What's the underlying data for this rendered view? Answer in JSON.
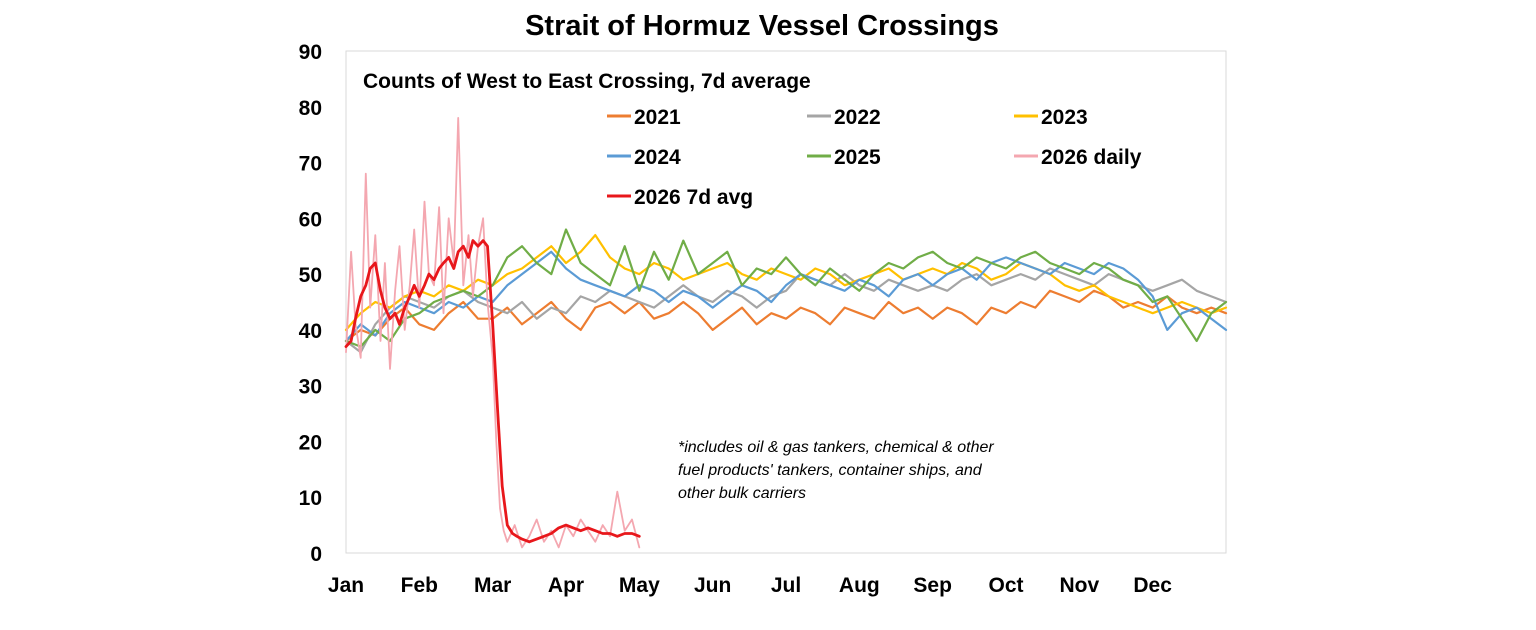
{
  "chart_data": {
    "type": "line",
    "title": "Strait of Hormuz Vessel Crossings",
    "subtitle": "Counts of West to East Crossing, 7d average",
    "footnote": [
      "*includes oil & gas tankers, chemical & other",
      "fuel products' tankers, container ships, and",
      "other bulk carriers"
    ],
    "ylim": [
      0,
      90
    ],
    "yticks": [
      0,
      10,
      20,
      30,
      40,
      50,
      60,
      70,
      80,
      90
    ],
    "x_unit": "month",
    "xlim": [
      0,
      12
    ],
    "xticks": [
      "Jan",
      "Feb",
      "Mar",
      "Apr",
      "May",
      "Jun",
      "Jul",
      "Aug",
      "Sep",
      "Oct",
      "Nov",
      "Dec"
    ],
    "legend_position": "top-right",
    "grid": false,
    "series": [
      {
        "name": "2021",
        "color": "#ED7D31",
        "width": 2.2,
        "x": [
          0,
          0.2,
          0.4,
          0.6,
          0.8,
          1,
          1.2,
          1.4,
          1.6,
          1.8,
          2,
          2.2,
          2.4,
          2.6,
          2.8,
          3,
          3.2,
          3.4,
          3.6,
          3.8,
          4,
          4.2,
          4.4,
          4.6,
          4.8,
          5,
          5.2,
          5.4,
          5.6,
          5.8,
          6,
          6.2,
          6.4,
          6.6,
          6.8,
          7,
          7.2,
          7.4,
          7.6,
          7.8,
          8,
          8.2,
          8.4,
          8.6,
          8.8,
          9,
          9.2,
          9.4,
          9.6,
          9.8,
          10,
          10.2,
          10.4,
          10.6,
          10.8,
          11,
          11.2,
          11.4,
          11.6,
          11.8,
          12
        ],
        "y": [
          38,
          40,
          39,
          42,
          44,
          41,
          40,
          43,
          45,
          42,
          42,
          44,
          41,
          43,
          45,
          42,
          40,
          44,
          45,
          43,
          45,
          42,
          43,
          45,
          43,
          40,
          42,
          44,
          41,
          43,
          42,
          44,
          43,
          41,
          44,
          43,
          42,
          45,
          43,
          44,
          42,
          44,
          43,
          41,
          44,
          43,
          45,
          44,
          47,
          46,
          45,
          47,
          46,
          44,
          45,
          44,
          46,
          44,
          43,
          44,
          43
        ]
      },
      {
        "name": "2022",
        "color": "#A5A5A5",
        "width": 2.2,
        "x": [
          0,
          0.2,
          0.4,
          0.6,
          0.8,
          1,
          1.2,
          1.4,
          1.6,
          1.8,
          2,
          2.2,
          2.4,
          2.6,
          2.8,
          3,
          3.2,
          3.4,
          3.6,
          3.8,
          4,
          4.2,
          4.4,
          4.6,
          4.8,
          5,
          5.2,
          5.4,
          5.6,
          5.8,
          6,
          6.2,
          6.4,
          6.6,
          6.8,
          7,
          7.2,
          7.4,
          7.6,
          7.8,
          8,
          8.2,
          8.4,
          8.6,
          8.8,
          9,
          9.2,
          9.4,
          9.6,
          9.8,
          10,
          10.2,
          10.4,
          10.6,
          10.8,
          11,
          11.2,
          11.4,
          11.6,
          11.8,
          12
        ],
        "y": [
          38,
          36,
          41,
          44,
          46,
          45,
          44,
          46,
          47,
          45,
          44,
          43,
          45,
          42,
          44,
          43,
          46,
          45,
          47,
          46,
          45,
          44,
          46,
          48,
          46,
          45,
          47,
          46,
          44,
          46,
          47,
          50,
          49,
          48,
          50,
          48,
          47,
          49,
          48,
          47,
          48,
          47,
          49,
          50,
          48,
          49,
          50,
          49,
          51,
          50,
          49,
          48,
          50,
          49,
          48,
          47,
          48,
          49,
          47,
          46,
          45
        ]
      },
      {
        "name": "2023",
        "color": "#FFC000",
        "width": 2.2,
        "x": [
          0,
          0.2,
          0.4,
          0.6,
          0.8,
          1,
          1.2,
          1.4,
          1.6,
          1.8,
          2,
          2.2,
          2.4,
          2.6,
          2.8,
          3,
          3.2,
          3.4,
          3.6,
          3.8,
          4,
          4.2,
          4.4,
          4.6,
          4.8,
          5,
          5.2,
          5.4,
          5.6,
          5.8,
          6,
          6.2,
          6.4,
          6.6,
          6.8,
          7,
          7.2,
          7.4,
          7.6,
          7.8,
          8,
          8.2,
          8.4,
          8.6,
          8.8,
          9,
          9.2,
          9.4,
          9.6,
          9.8,
          10,
          10.2,
          10.4,
          10.6,
          10.8,
          11,
          11.2,
          11.4,
          11.6,
          11.8,
          12
        ],
        "y": [
          40,
          43,
          45,
          44,
          46,
          47,
          46,
          48,
          47,
          49,
          48,
          50,
          51,
          53,
          55,
          52,
          54,
          57,
          53,
          51,
          50,
          52,
          51,
          49,
          50,
          51,
          52,
          50,
          49,
          51,
          50,
          49,
          51,
          50,
          48,
          49,
          50,
          51,
          49,
          50,
          51,
          50,
          52,
          51,
          49,
          50,
          52,
          51,
          50,
          48,
          47,
          48,
          46,
          45,
          44,
          43,
          44,
          45,
          44,
          43,
          44
        ]
      },
      {
        "name": "2024",
        "color": "#5B9BD5",
        "width": 2.2,
        "x": [
          0,
          0.2,
          0.4,
          0.6,
          0.8,
          1,
          1.2,
          1.4,
          1.6,
          1.8,
          2,
          2.2,
          2.4,
          2.6,
          2.8,
          3,
          3.2,
          3.4,
          3.6,
          3.8,
          4,
          4.2,
          4.4,
          4.6,
          4.8,
          5,
          5.2,
          5.4,
          5.6,
          5.8,
          6,
          6.2,
          6.4,
          6.6,
          6.8,
          7,
          7.2,
          7.4,
          7.6,
          7.8,
          8,
          8.2,
          8.4,
          8.6,
          8.8,
          9,
          9.2,
          9.4,
          9.6,
          9.8,
          10,
          10.2,
          10.4,
          10.6,
          10.8,
          11,
          11.2,
          11.4,
          11.6,
          11.8,
          12
        ],
        "y": [
          38,
          41,
          39,
          43,
          45,
          44,
          43,
          45,
          44,
          46,
          45,
          48,
          50,
          52,
          54,
          51,
          49,
          48,
          47,
          46,
          48,
          47,
          45,
          47,
          46,
          44,
          46,
          48,
          47,
          45,
          48,
          50,
          49,
          48,
          47,
          49,
          48,
          46,
          49,
          50,
          48,
          50,
          51,
          49,
          52,
          53,
          52,
          51,
          50,
          52,
          51,
          50,
          52,
          51,
          49,
          46,
          40,
          43,
          44,
          42,
          40
        ]
      },
      {
        "name": "2025",
        "color": "#70AD47",
        "width": 2.2,
        "x": [
          0,
          0.2,
          0.4,
          0.6,
          0.8,
          1,
          1.2,
          1.4,
          1.6,
          1.8,
          2,
          2.2,
          2.4,
          2.6,
          2.8,
          3,
          3.2,
          3.4,
          3.6,
          3.8,
          4,
          4.2,
          4.4,
          4.6,
          4.8,
          5,
          5.2,
          5.4,
          5.6,
          5.8,
          6,
          6.2,
          6.4,
          6.6,
          6.8,
          7,
          7.2,
          7.4,
          7.6,
          7.8,
          8,
          8.2,
          8.4,
          8.6,
          8.8,
          9,
          9.2,
          9.4,
          9.6,
          9.8,
          10,
          10.2,
          10.4,
          10.6,
          10.8,
          11,
          11.2,
          11.4,
          11.6,
          11.8,
          12
        ],
        "y": [
          38,
          37,
          40,
          38,
          42,
          43,
          45,
          46,
          47,
          46,
          48,
          53,
          55,
          52,
          50,
          58,
          52,
          50,
          48,
          55,
          47,
          54,
          49,
          56,
          50,
          52,
          54,
          48,
          51,
          50,
          53,
          50,
          48,
          51,
          49,
          47,
          50,
          52,
          51,
          53,
          54,
          52,
          51,
          53,
          52,
          51,
          53,
          54,
          52,
          51,
          50,
          52,
          51,
          49,
          48,
          45,
          46,
          42,
          38,
          43,
          45
        ]
      },
      {
        "name": "2026 daily",
        "color": "#F4A7B0",
        "width": 1.8,
        "x": [
          0,
          0.07,
          0.13,
          0.2,
          0.27,
          0.33,
          0.4,
          0.47,
          0.53,
          0.6,
          0.67,
          0.73,
          0.8,
          0.87,
          0.93,
          1,
          1.07,
          1.13,
          1.2,
          1.27,
          1.33,
          1.4,
          1.47,
          1.53,
          1.6,
          1.67,
          1.73,
          1.8,
          1.87,
          1.93,
          2,
          2.05,
          2.1,
          2.15,
          2.2,
          2.3,
          2.4,
          2.5,
          2.6,
          2.7,
          2.8,
          2.9,
          3,
          3.1,
          3.2,
          3.3,
          3.4,
          3.5,
          3.6,
          3.7,
          3.8,
          3.9,
          4
        ],
        "y": [
          36,
          54,
          41,
          35,
          68,
          44,
          57,
          38,
          52,
          33,
          47,
          55,
          40,
          48,
          58,
          44,
          63,
          50,
          48,
          62,
          43,
          60,
          52,
          78,
          48,
          57,
          46,
          55,
          60,
          45,
          35,
          20,
          8,
          4,
          2,
          5,
          1,
          3,
          6,
          2,
          4,
          1,
          5,
          3,
          6,
          4,
          2,
          5,
          3,
          11,
          4,
          6,
          1
        ]
      },
      {
        "name": "2026 7d avg",
        "color": "#E8171B",
        "width": 2.8,
        "x": [
          0,
          0.07,
          0.13,
          0.2,
          0.27,
          0.33,
          0.4,
          0.47,
          0.53,
          0.6,
          0.67,
          0.73,
          0.8,
          0.87,
          0.93,
          1,
          1.07,
          1.13,
          1.2,
          1.27,
          1.33,
          1.4,
          1.47,
          1.53,
          1.6,
          1.67,
          1.73,
          1.8,
          1.87,
          1.93,
          2,
          2.07,
          2.13,
          2.2,
          2.27,
          2.33,
          2.4,
          2.5,
          2.6,
          2.7,
          2.8,
          2.9,
          3,
          3.1,
          3.2,
          3.3,
          3.4,
          3.5,
          3.6,
          3.7,
          3.8,
          3.9,
          4
        ],
        "y": [
          37,
          38,
          42,
          46,
          48,
          51,
          52,
          47,
          44,
          42,
          43,
          41,
          44,
          46,
          48,
          46,
          48,
          50,
          49,
          51,
          52,
          53,
          51,
          54,
          55,
          53,
          56,
          55,
          56,
          55,
          41,
          25,
          12,
          5,
          3.5,
          3,
          2.5,
          2,
          2.5,
          3,
          3.5,
          4.5,
          5,
          4.5,
          4,
          4.5,
          4,
          3.5,
          3.5,
          3,
          3.5,
          3.5,
          3
        ]
      }
    ]
  }
}
